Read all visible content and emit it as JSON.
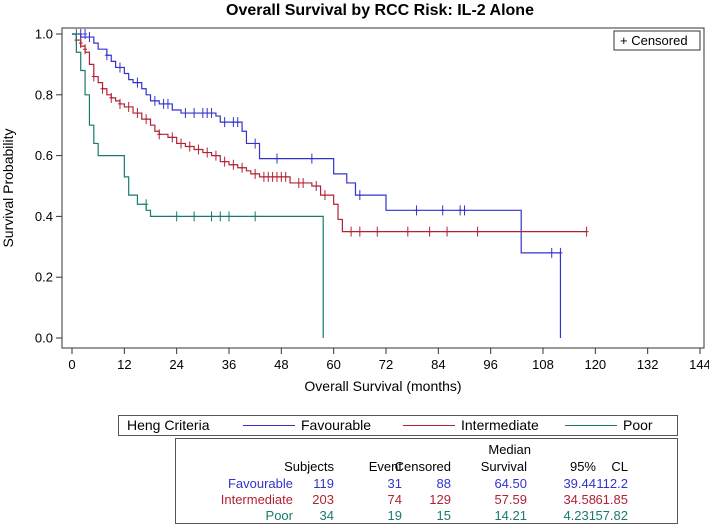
{
  "chart_data": {
    "type": "line",
    "title": "Overall Survival by RCC Risk: IL-2 Alone",
    "xlabel": "Overall Survival (months)",
    "ylabel": "Survival Probability",
    "xlim": [
      0,
      144
    ],
    "ylim": [
      0,
      1
    ],
    "x_ticks": [
      "0",
      "12",
      "24",
      "36",
      "48",
      "60",
      "72",
      "84",
      "96",
      "108",
      "120",
      "132",
      "144"
    ],
    "y_ticks": [
      "0.0",
      "0.2",
      "0.4",
      "0.6",
      "0.8",
      "1.0"
    ],
    "censor_legend": "+ Censored",
    "series": [
      {
        "name": "Favourable",
        "color": "#3333cc",
        "steps": [
          [
            0,
            1.0
          ],
          [
            2,
            0.99
          ],
          [
            5,
            0.97
          ],
          [
            6,
            0.95
          ],
          [
            8,
            0.93
          ],
          [
            9,
            0.91
          ],
          [
            10,
            0.89
          ],
          [
            12,
            0.87
          ],
          [
            13,
            0.85
          ],
          [
            14,
            0.84
          ],
          [
            16,
            0.82
          ],
          [
            17,
            0.8
          ],
          [
            18,
            0.78
          ],
          [
            20,
            0.77
          ],
          [
            23,
            0.75
          ],
          [
            25,
            0.74
          ],
          [
            33,
            0.73
          ],
          [
            34,
            0.71
          ],
          [
            39,
            0.68
          ],
          [
            40,
            0.64
          ],
          [
            43,
            0.59
          ],
          [
            60,
            0.54
          ],
          [
            63,
            0.51
          ],
          [
            65,
            0.47
          ],
          [
            72,
            0.42
          ],
          [
            103,
            0.28
          ],
          [
            112,
            0.0
          ]
        ],
        "censored": [
          [
            2,
            1.0
          ],
          [
            3,
            1.0
          ],
          [
            4,
            0.99
          ],
          [
            8,
            0.93
          ],
          [
            11,
            0.89
          ],
          [
            15,
            0.84
          ],
          [
            19,
            0.78
          ],
          [
            21,
            0.77
          ],
          [
            22,
            0.77
          ],
          [
            26,
            0.74
          ],
          [
            28,
            0.74
          ],
          [
            30,
            0.74
          ],
          [
            31,
            0.74
          ],
          [
            32,
            0.74
          ],
          [
            35,
            0.71
          ],
          [
            37,
            0.71
          ],
          [
            38,
            0.71
          ],
          [
            42,
            0.64
          ],
          [
            47,
            0.59
          ],
          [
            55,
            0.59
          ],
          [
            66,
            0.47
          ],
          [
            79,
            0.42
          ],
          [
            85,
            0.42
          ],
          [
            89,
            0.42
          ],
          [
            90,
            0.42
          ],
          [
            110,
            0.28
          ],
          [
            112,
            0.28
          ]
        ]
      },
      {
        "name": "Intermediate",
        "color": "#b22234",
        "steps": [
          [
            0,
            1.0
          ],
          [
            1,
            0.98
          ],
          [
            2,
            0.96
          ],
          [
            3,
            0.94
          ],
          [
            4,
            0.9
          ],
          [
            5,
            0.86
          ],
          [
            6,
            0.84
          ],
          [
            7,
            0.82
          ],
          [
            8,
            0.8
          ],
          [
            9,
            0.79
          ],
          [
            10,
            0.78
          ],
          [
            11,
            0.77
          ],
          [
            12,
            0.76
          ],
          [
            14,
            0.74
          ],
          [
            16,
            0.72
          ],
          [
            18,
            0.7
          ],
          [
            19,
            0.68
          ],
          [
            20,
            0.67
          ],
          [
            22,
            0.66
          ],
          [
            24,
            0.64
          ],
          [
            26,
            0.63
          ],
          [
            28,
            0.62
          ],
          [
            30,
            0.61
          ],
          [
            32,
            0.6
          ],
          [
            34,
            0.58
          ],
          [
            36,
            0.57
          ],
          [
            38,
            0.56
          ],
          [
            40,
            0.55
          ],
          [
            41,
            0.54
          ],
          [
            43,
            0.53
          ],
          [
            50,
            0.51
          ],
          [
            55,
            0.5
          ],
          [
            57,
            0.47
          ],
          [
            60,
            0.44
          ],
          [
            61,
            0.39
          ],
          [
            62,
            0.35
          ],
          [
            118,
            0.35
          ]
        ],
        "censored": [
          [
            1,
            0.98
          ],
          [
            2,
            0.97
          ],
          [
            3,
            0.95
          ],
          [
            5,
            0.86
          ],
          [
            7,
            0.82
          ],
          [
            9,
            0.79
          ],
          [
            11,
            0.77
          ],
          [
            13,
            0.76
          ],
          [
            15,
            0.74
          ],
          [
            17,
            0.72
          ],
          [
            20,
            0.67
          ],
          [
            23,
            0.66
          ],
          [
            25,
            0.64
          ],
          [
            27,
            0.63
          ],
          [
            29,
            0.62
          ],
          [
            31,
            0.61
          ],
          [
            33,
            0.6
          ],
          [
            35,
            0.58
          ],
          [
            37,
            0.57
          ],
          [
            39,
            0.56
          ],
          [
            42,
            0.54
          ],
          [
            44,
            0.53
          ],
          [
            45,
            0.53
          ],
          [
            46,
            0.53
          ],
          [
            47,
            0.53
          ],
          [
            48,
            0.53
          ],
          [
            49,
            0.53
          ],
          [
            52,
            0.51
          ],
          [
            53,
            0.51
          ],
          [
            56,
            0.5
          ],
          [
            58,
            0.47
          ],
          [
            64,
            0.35
          ],
          [
            66,
            0.35
          ],
          [
            70,
            0.35
          ],
          [
            77,
            0.35
          ],
          [
            82,
            0.35
          ],
          [
            86,
            0.35
          ],
          [
            93,
            0.35
          ],
          [
            118,
            0.35
          ]
        ]
      },
      {
        "name": "Poor",
        "color": "#1a7a6e",
        "steps": [
          [
            0,
            1.0
          ],
          [
            1,
            0.94
          ],
          [
            2,
            0.88
          ],
          [
            3,
            0.8
          ],
          [
            4,
            0.7
          ],
          [
            5,
            0.64
          ],
          [
            6,
            0.6
          ],
          [
            12,
            0.53
          ],
          [
            13,
            0.47
          ],
          [
            15,
            0.44
          ],
          [
            17,
            0.42
          ],
          [
            18,
            0.4
          ],
          [
            57.6,
            0.4
          ],
          [
            57.6,
            0.0
          ]
        ],
        "censored": [
          [
            1,
            1.0
          ],
          [
            17,
            0.44
          ],
          [
            24,
            0.4
          ],
          [
            28,
            0.4
          ],
          [
            32,
            0.4
          ],
          [
            34,
            0.4
          ],
          [
            36,
            0.4
          ],
          [
            42,
            0.4
          ]
        ]
      }
    ],
    "legend": {
      "title": "Heng Criteria",
      "items": [
        "Favourable",
        "Intermediate",
        "Poor"
      ],
      "colors": [
        "#3333cc",
        "#b22234",
        "#1a7a6e"
      ]
    },
    "stats_table": {
      "headers": {
        "subjects": "Subjects",
        "event": "Event",
        "censored": "Censored",
        "median_top": "Median",
        "median_bottom": "Survival",
        "ci95": "95%",
        "cl": "CL"
      },
      "rows": [
        {
          "group": "Favourable",
          "subjects": "119",
          "event": "31",
          "censored": "88",
          "median": "64.50",
          "lower": "39.44",
          "upper": "112.2"
        },
        {
          "group": "Intermediate",
          "subjects": "203",
          "event": "74",
          "censored": "129",
          "median": "57.59",
          "lower": "34.58",
          "upper": "61.85"
        },
        {
          "group": "Poor",
          "subjects": "34",
          "event": "19",
          "censored": "15",
          "median": "14.21",
          "lower": "4.231",
          "upper": "57.82"
        }
      ]
    }
  }
}
